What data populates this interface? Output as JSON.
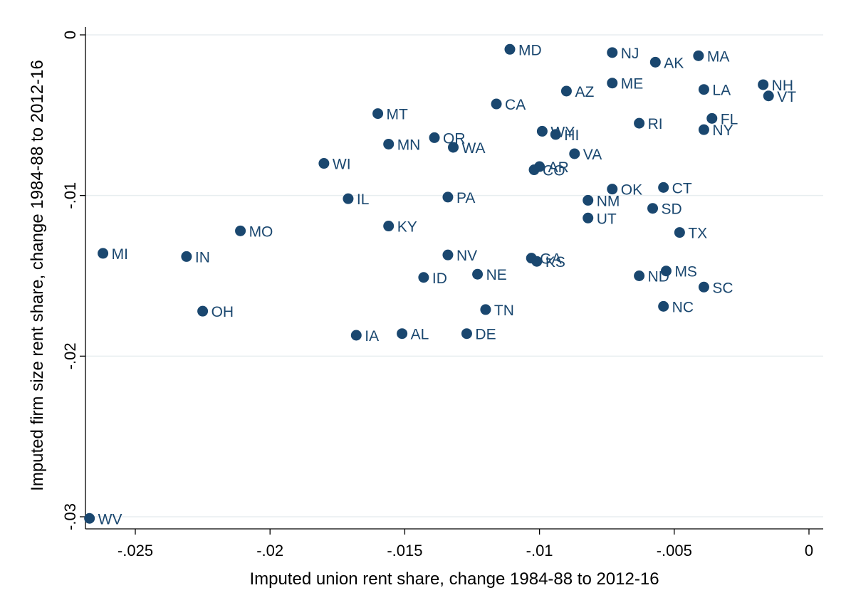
{
  "chart_data": {
    "type": "scatter",
    "title": "",
    "xlabel": "Imputed union rent share, change 1984-88 to 2012-16",
    "ylabel": "Imputed firm size rent share, change 1984-88 to 2012-16",
    "xlim": [
      -0.027,
      0.0005
    ],
    "ylim": [
      -0.0309,
      0.0005
    ],
    "xticks": [
      -0.025,
      -0.02,
      -0.015,
      -0.01,
      -0.005,
      0
    ],
    "xtick_labels": [
      "-.025",
      "-.02",
      "-.015",
      "-.01",
      "-.005",
      "0"
    ],
    "yticks": [
      0,
      -0.01,
      -0.02,
      -0.03
    ],
    "ytick_labels": [
      "0",
      "-.01",
      "-.02",
      "-.03"
    ],
    "grid": true,
    "marker_color": "#1a476f",
    "points": [
      {
        "label": "MD",
        "x": -0.0111,
        "y": -0.0009
      },
      {
        "label": "NJ",
        "x": -0.0073,
        "y": -0.0011
      },
      {
        "label": "AK",
        "x": -0.0057,
        "y": -0.0017
      },
      {
        "label": "MA",
        "x": -0.0041,
        "y": -0.0013
      },
      {
        "label": "ME",
        "x": -0.0073,
        "y": -0.003
      },
      {
        "label": "AZ",
        "x": -0.009,
        "y": -0.0035
      },
      {
        "label": "LA",
        "x": -0.0039,
        "y": -0.0034
      },
      {
        "label": "NH",
        "x": -0.0017,
        "y": -0.0031
      },
      {
        "label": "VT",
        "x": -0.0015,
        "y": -0.0038
      },
      {
        "label": "CA",
        "x": -0.0116,
        "y": -0.0043
      },
      {
        "label": "MT",
        "x": -0.016,
        "y": -0.0049
      },
      {
        "label": "FL",
        "x": -0.0036,
        "y": -0.0052
      },
      {
        "label": "RI",
        "x": -0.0063,
        "y": -0.0055
      },
      {
        "label": "NY",
        "x": -0.0039,
        "y": -0.0059
      },
      {
        "label": "WY",
        "x": -0.0099,
        "y": -0.006
      },
      {
        "label": "HI",
        "x": -0.0094,
        "y": -0.0062
      },
      {
        "label": "OR",
        "x": -0.0139,
        "y": -0.0064
      },
      {
        "label": "MN",
        "x": -0.0156,
        "y": -0.0068
      },
      {
        "label": "WA",
        "x": -0.0132,
        "y": -0.007
      },
      {
        "label": "VA",
        "x": -0.0087,
        "y": -0.0074
      },
      {
        "label": "WI",
        "x": -0.018,
        "y": -0.008
      },
      {
        "label": "AR",
        "x": -0.01,
        "y": -0.0082
      },
      {
        "label": "CO",
        "x": -0.0102,
        "y": -0.0084
      },
      {
        "label": "OK",
        "x": -0.0073,
        "y": -0.0096
      },
      {
        "label": "CT",
        "x": -0.0054,
        "y": -0.0095
      },
      {
        "label": "IL",
        "x": -0.0171,
        "y": -0.0102
      },
      {
        "label": "PA",
        "x": -0.0134,
        "y": -0.0101
      },
      {
        "label": "NM",
        "x": -0.0082,
        "y": -0.0103
      },
      {
        "label": "SD",
        "x": -0.0058,
        "y": -0.0108
      },
      {
        "label": "UT",
        "x": -0.0082,
        "y": -0.0114
      },
      {
        "label": "KY",
        "x": -0.0156,
        "y": -0.0119
      },
      {
        "label": "MO",
        "x": -0.0211,
        "y": -0.0122
      },
      {
        "label": "TX",
        "x": -0.0048,
        "y": -0.0123
      },
      {
        "label": "MI",
        "x": -0.0262,
        "y": -0.0136
      },
      {
        "label": "IN",
        "x": -0.0231,
        "y": -0.0138
      },
      {
        "label": "NV",
        "x": -0.0134,
        "y": -0.0137
      },
      {
        "label": "GA",
        "x": -0.0103,
        "y": -0.0139
      },
      {
        "label": "KS",
        "x": -0.0101,
        "y": -0.0141
      },
      {
        "label": "MS",
        "x": -0.0053,
        "y": -0.0147
      },
      {
        "label": "NE",
        "x": -0.0123,
        "y": -0.0149
      },
      {
        "label": "ND",
        "x": -0.0063,
        "y": -0.015
      },
      {
        "label": "ID",
        "x": -0.0143,
        "y": -0.0151
      },
      {
        "label": "SC",
        "x": -0.0039,
        "y": -0.0157
      },
      {
        "label": "NC",
        "x": -0.0054,
        "y": -0.0169
      },
      {
        "label": "OH",
        "x": -0.0225,
        "y": -0.0172
      },
      {
        "label": "TN",
        "x": -0.012,
        "y": -0.0171
      },
      {
        "label": "DE",
        "x": -0.0127,
        "y": -0.0186
      },
      {
        "label": "AL",
        "x": -0.0151,
        "y": -0.0186
      },
      {
        "label": "IA",
        "x": -0.0168,
        "y": -0.0187
      },
      {
        "label": "WV",
        "x": -0.0267,
        "y": -0.0301
      }
    ]
  }
}
